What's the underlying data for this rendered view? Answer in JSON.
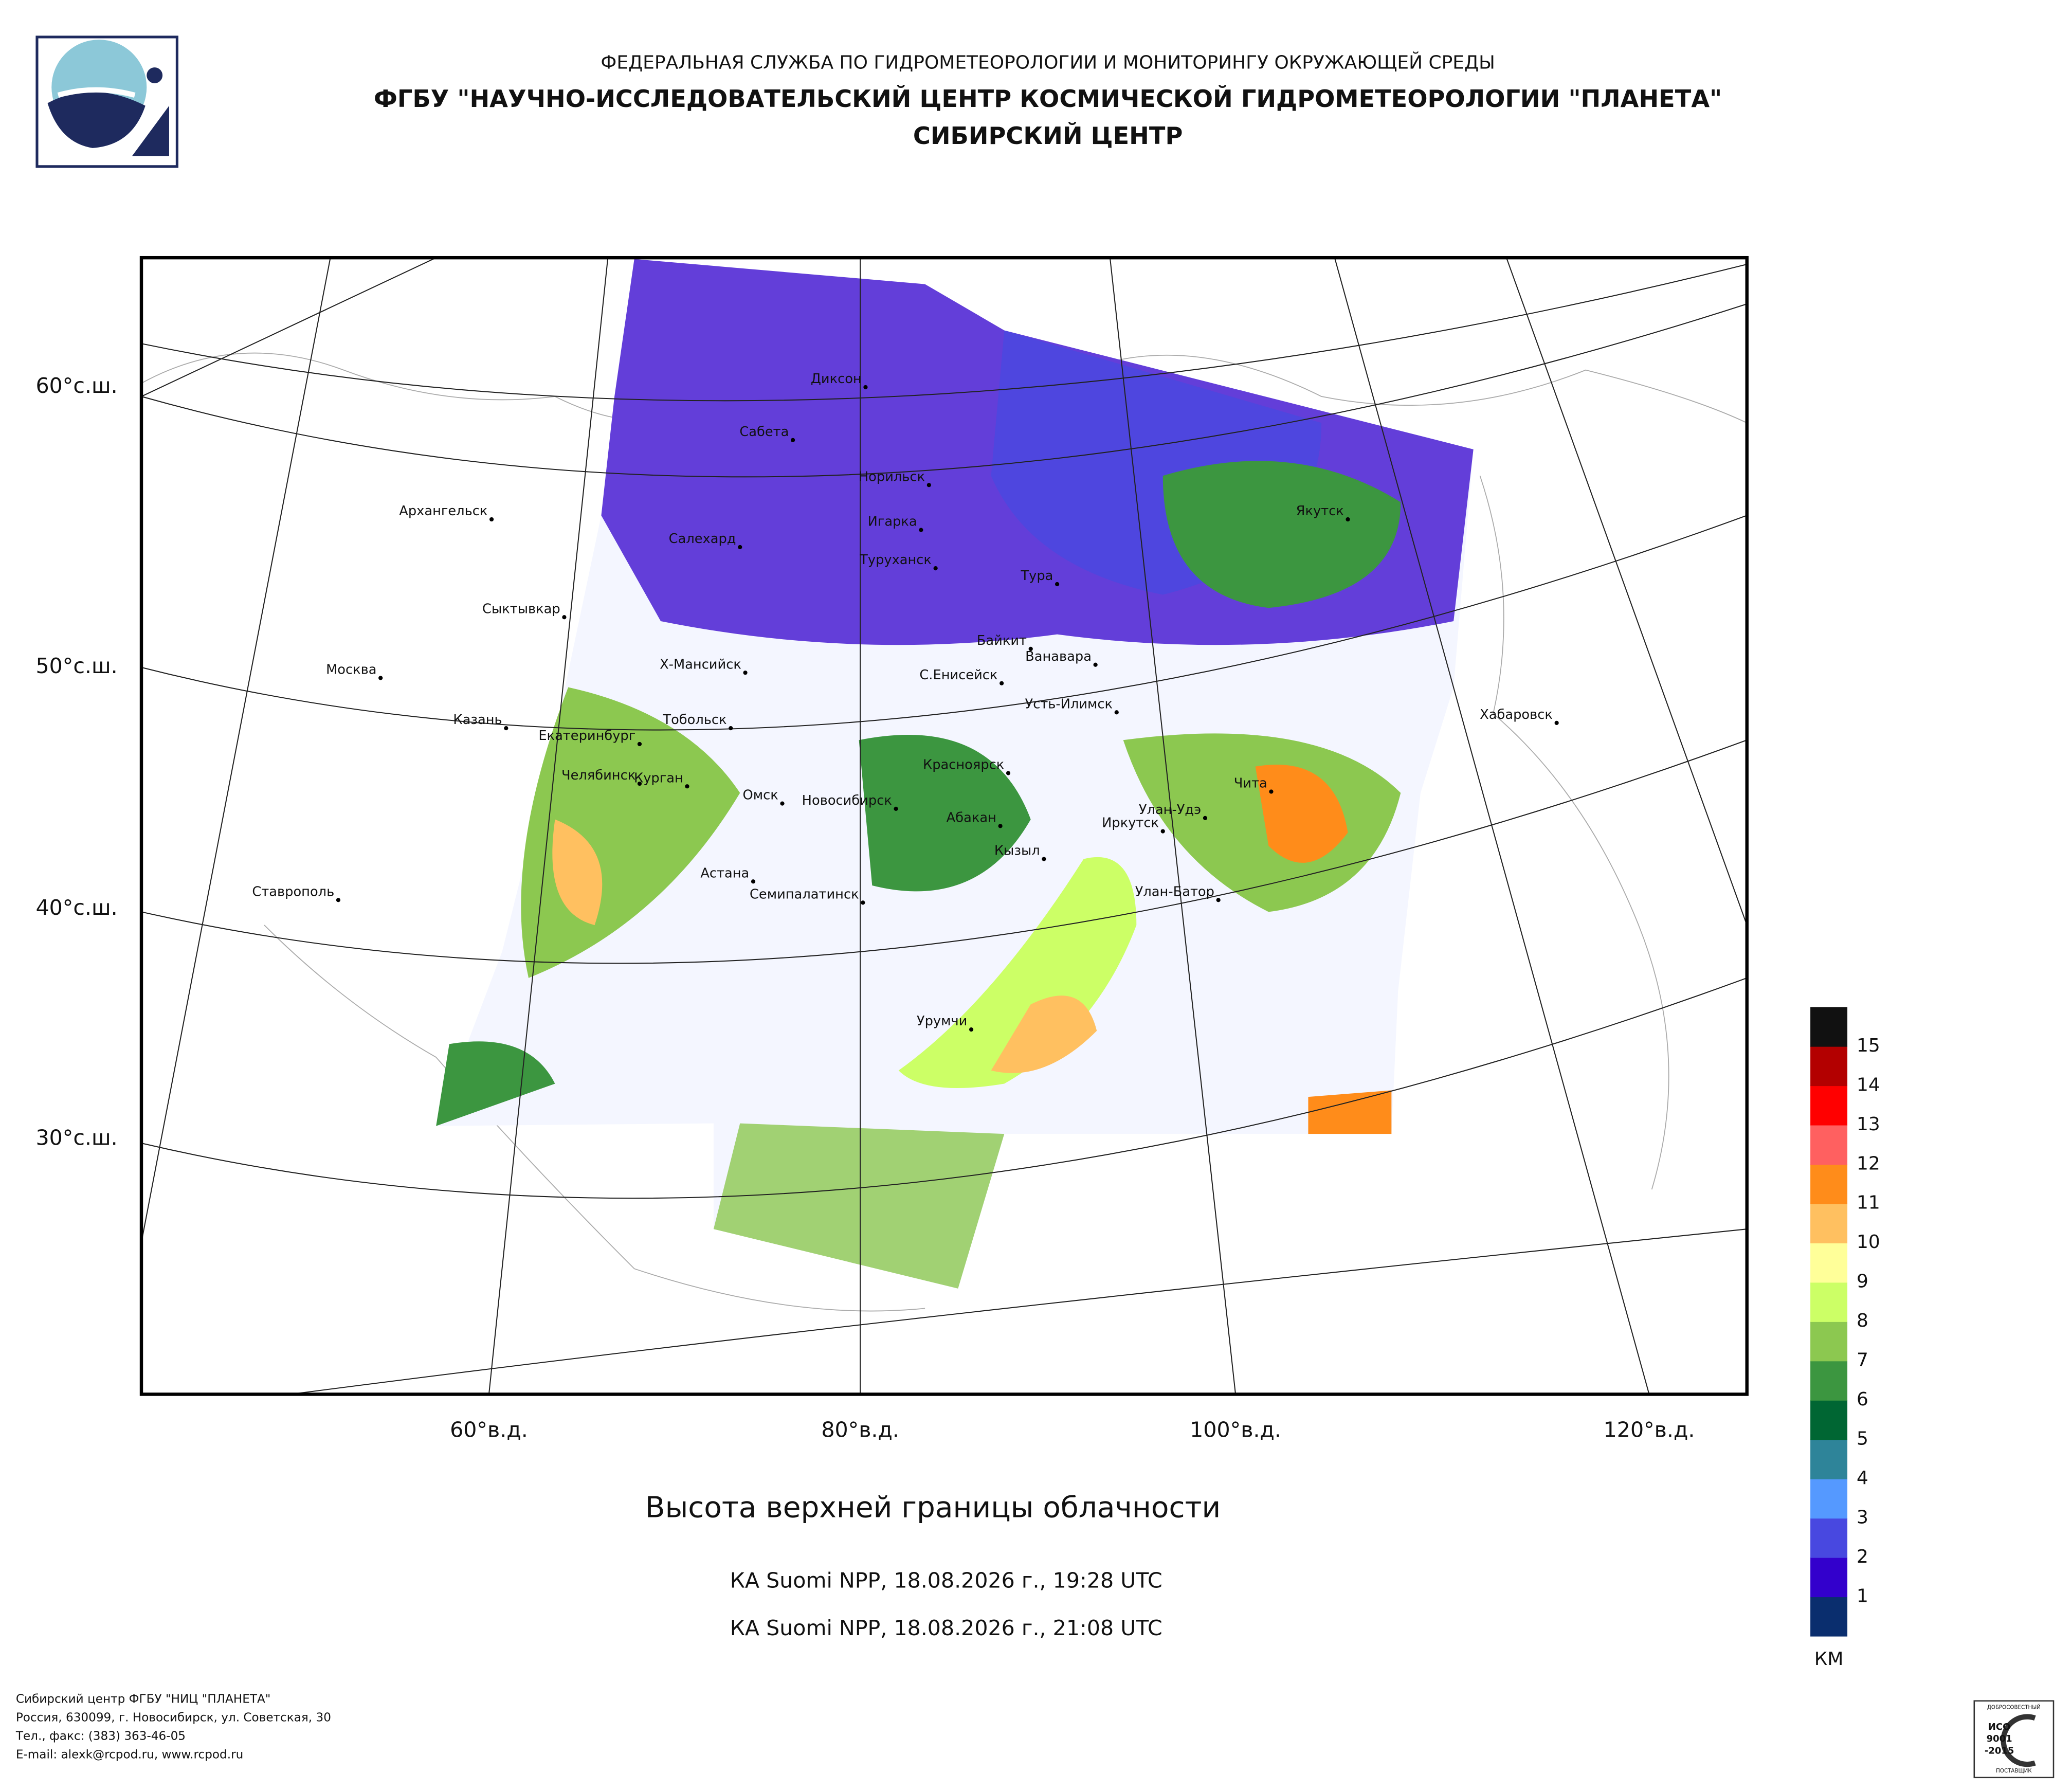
{
  "header": {
    "line1": "ФЕДЕРАЛЬНАЯ СЛУЖБА ПО ГИДРОМЕТЕОРОЛОГИИ И МОНИТОРИНГУ ОКРУЖАЮЩЕЙ СРЕДЫ",
    "line2": "ФГБУ \"НАУЧНО-ИССЛЕДОВАТЕЛЬСКИЙ ЦЕНТР КОСМИЧЕСКОЙ ГИДРОМЕТЕОРОЛОГИИ \"ПЛАНЕТА\"",
    "line3": "СИБИРСКИЙ ЦЕНТР"
  },
  "map": {
    "lat_labels": [
      "60°с.ш.",
      "50°с.ш.",
      "40°с.ш.",
      "30°с.ш."
    ],
    "lon_labels": [
      "60°в.д.",
      "80°в.д.",
      "100°в.д.",
      "120°в.д."
    ],
    "cities": [
      "Диксон",
      "Сабета",
      "Норильск",
      "Игарка",
      "Салехард",
      "Туруханск",
      "Тура",
      "Архангельск",
      "Сыктывкар",
      "Якутск",
      "Байкит",
      "Ванавара",
      "Москва",
      "Х-Мансийск",
      "С.Енисейск",
      "Усть-Илимск",
      "Хабаровск",
      "Казань",
      "Тобольск",
      "Екатеринбург",
      "Красноярск",
      "Чита",
      "Челябинск",
      "Курган",
      "Омск",
      "Новосибирск",
      "Абакан",
      "Улан-Удэ",
      "Иркутск",
      "Кызыл",
      "Астана",
      "Ставрополь",
      "Улан-Батор",
      "Семипалатинск",
      "Урумчи"
    ]
  },
  "title": "Высота верхней границы облачности",
  "passes": [
    "КА Suomi NPP, 18.08.2026 г., 19:28 UTC",
    "КА Suomi NPP, 18.08.2026 г., 21:08 UTC"
  ],
  "legend": {
    "unit": "КМ",
    "ticks": [
      1,
      2,
      3,
      4,
      5,
      6,
      7,
      8,
      9,
      10,
      11,
      12,
      13,
      14,
      15
    ],
    "colors": [
      "#0a2e6e",
      "#3300cc",
      "#4848e0",
      "#5599ff",
      "#2e8499",
      "#006633",
      "#3c9640",
      "#8cc850",
      "#ccff66",
      "#ffff99",
      "#ffc060",
      "#ff8c1a",
      "#ff6060",
      "#ff0000",
      "#b30000",
      "#111111"
    ]
  },
  "footer": [
    "Сибирский центр ФГБУ \"НИЦ \"ПЛАНЕТА\"",
    "Россия, 630099, г. Новосибирск, ул. Советская, 30",
    "Тел., факс: (383) 363-46-05",
    "E-mail: alexk@rcpod.ru, www.rcpod.ru"
  ],
  "badge": [
    "ДОБРОСОВЕСТНЫЙ",
    "ИСО",
    "9001",
    "-2015",
    "ПОСТАВЩИК"
  ]
}
